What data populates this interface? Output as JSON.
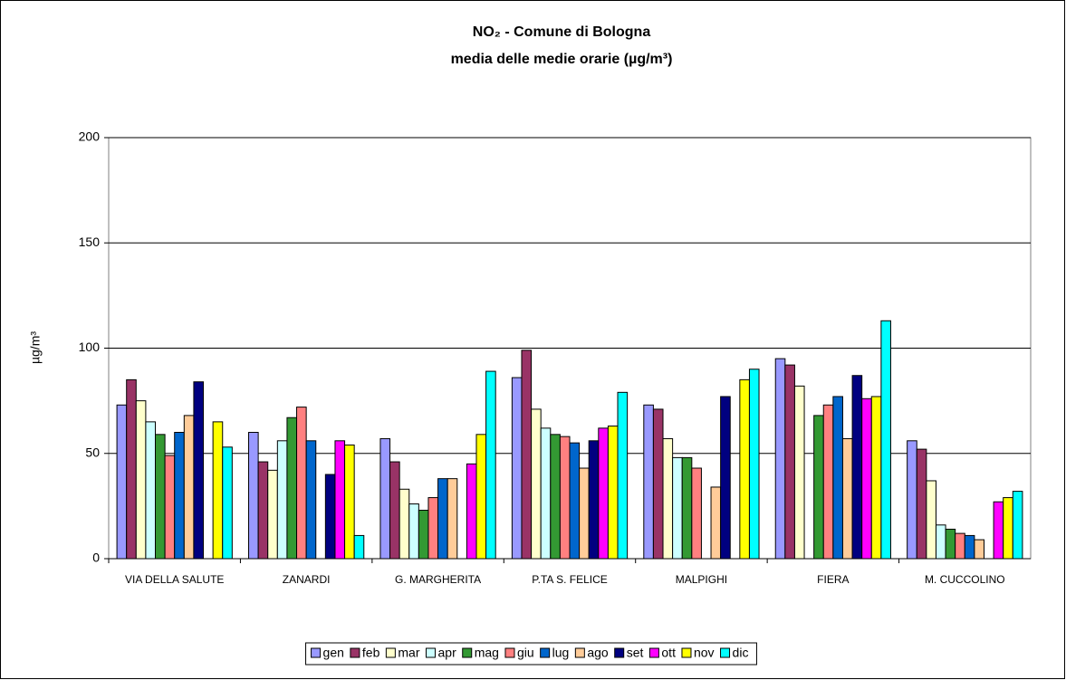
{
  "chart_data": {
    "type": "bar",
    "title": "NO₂ - Comune di Bologna",
    "subtitle": "media delle medie orarie (µg/m³)",
    "y_label": "µg/m³",
    "categories": [
      "VIA DELLA SALUTE",
      "ZANARDI",
      "G. MARGHERITA",
      "P.TA S. FELICE",
      "MALPIGHI",
      "FIERA",
      "M. CUCCOLINO"
    ],
    "series": [
      {
        "name": "gen",
        "color": "#9999ff",
        "values": [
          73,
          60,
          57,
          86,
          73,
          95,
          56
        ]
      },
      {
        "name": "feb",
        "color": "#993366",
        "values": [
          85,
          46,
          46,
          99,
          71,
          92,
          52
        ]
      },
      {
        "name": "mar",
        "color": "#ffffcc",
        "values": [
          75,
          42,
          33,
          71,
          57,
          82,
          37
        ]
      },
      {
        "name": "apr",
        "color": "#ccffff",
        "values": [
          65,
          56,
          26,
          62,
          48,
          null,
          16
        ]
      },
      {
        "name": "mag",
        "color": "#339933",
        "values": [
          59,
          67,
          23,
          59,
          48,
          68,
          14
        ]
      },
      {
        "name": "giu",
        "color": "#ff8080",
        "values": [
          49,
          72,
          29,
          58,
          43,
          73,
          12
        ]
      },
      {
        "name": "lug",
        "color": "#0066cc",
        "values": [
          60,
          56,
          38,
          55,
          null,
          77,
          11
        ]
      },
      {
        "name": "ago",
        "color": "#ffcc99",
        "values": [
          68,
          null,
          38,
          43,
          34,
          57,
          9
        ]
      },
      {
        "name": "set",
        "color": "#000080",
        "values": [
          84,
          40,
          null,
          56,
          77,
          87,
          null
        ]
      },
      {
        "name": "ott",
        "color": "#ff00ff",
        "values": [
          null,
          56,
          45,
          62,
          null,
          76,
          27
        ]
      },
      {
        "name": "nov",
        "color": "#ffff00",
        "values": [
          65,
          54,
          59,
          63,
          85,
          77,
          29
        ]
      },
      {
        "name": "dic",
        "color": "#00ffff",
        "values": [
          53,
          11,
          89,
          79,
          90,
          113,
          32
        ]
      }
    ],
    "ylim": [
      0,
      200
    ],
    "yticks": [
      0,
      50,
      100,
      150,
      200
    ],
    "grid": true,
    "legend": "bottom"
  }
}
